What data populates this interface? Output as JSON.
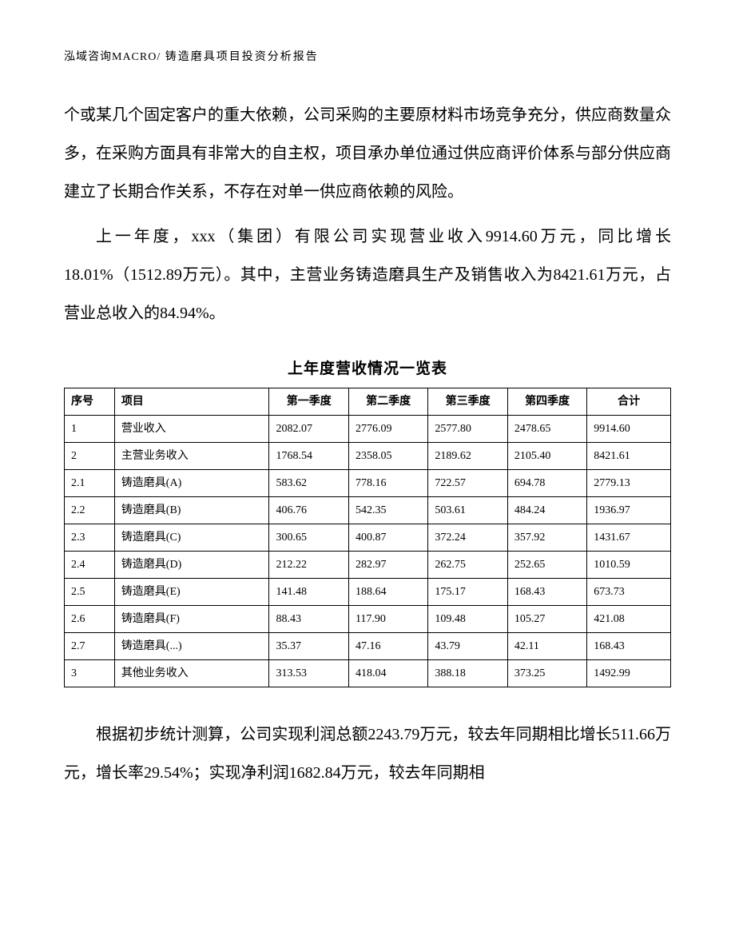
{
  "header": {
    "company": "泓域咨询MACRO/",
    "title": "铸造磨具项目投资分析报告"
  },
  "paragraphs": {
    "p1": "个或某几个固定客户的重大依赖，公司采购的主要原材料市场竞争充分，供应商数量众多，在采购方面具有非常大的自主权，项目承办单位通过供应商评价体系与部分供应商建立了长期合作关系，不存在对单一供应商依赖的风险。",
    "p2": "上一年度，xxx（集团）有限公司实现营业收入9914.60万元，同比增长18.01%（1512.89万元）。其中，主营业务铸造磨具生产及销售收入为8421.61万元，占营业总收入的84.94%。",
    "p3": "根据初步统计测算，公司实现利润总额2243.79万元，较去年同期相比增长511.66万元，增长率29.54%；实现净利润1682.84万元，较去年同期相"
  },
  "table": {
    "title": "上年度营收情况一览表",
    "columns": [
      "序号",
      "项目",
      "第一季度",
      "第二季度",
      "第三季度",
      "第四季度",
      "合计"
    ],
    "rows": [
      [
        "1",
        "营业收入",
        "2082.07",
        "2776.09",
        "2577.80",
        "2478.65",
        "9914.60"
      ],
      [
        "2",
        "主营业务收入",
        "1768.54",
        "2358.05",
        "2189.62",
        "2105.40",
        "8421.61"
      ],
      [
        "2.1",
        "铸造磨具(A)",
        "583.62",
        "778.16",
        "722.57",
        "694.78",
        "2779.13"
      ],
      [
        "2.2",
        "铸造磨具(B)",
        "406.76",
        "542.35",
        "503.61",
        "484.24",
        "1936.97"
      ],
      [
        "2.3",
        "铸造磨具(C)",
        "300.65",
        "400.87",
        "372.24",
        "357.92",
        "1431.67"
      ],
      [
        "2.4",
        "铸造磨具(D)",
        "212.22",
        "282.97",
        "262.75",
        "252.65",
        "1010.59"
      ],
      [
        "2.5",
        "铸造磨具(E)",
        "141.48",
        "188.64",
        "175.17",
        "168.43",
        "673.73"
      ],
      [
        "2.6",
        "铸造磨具(F)",
        "88.43",
        "117.90",
        "109.48",
        "105.27",
        "421.08"
      ],
      [
        "2.7",
        "铸造磨具(...)",
        "35.37",
        "47.16",
        "43.79",
        "42.11",
        "168.43"
      ],
      [
        "3",
        "其他业务收入",
        "313.53",
        "418.04",
        "388.18",
        "373.25",
        "1492.99"
      ]
    ]
  }
}
